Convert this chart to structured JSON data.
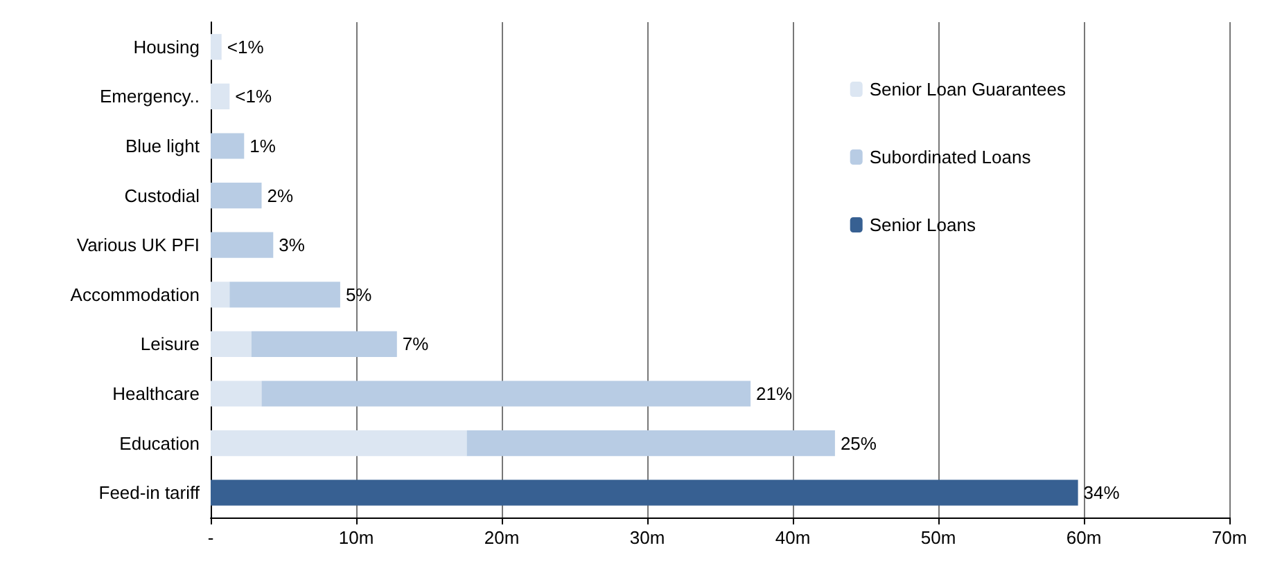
{
  "chart_data": {
    "type": "bar",
    "orientation": "horizontal",
    "stacked": true,
    "categories": [
      "Housing",
      "Emergency..",
      "Blue light",
      "Custodial",
      "Various UK PFI",
      "Accommodation",
      "Leisure",
      "Healthcare",
      "Education",
      "Feed-in tariff"
    ],
    "series": [
      {
        "name": "Senior Loan Guarantees",
        "color": "#dce6f2",
        "values": [
          0.75,
          1.3,
          null,
          null,
          null,
          1.3,
          2.8,
          3.5,
          17.6,
          null
        ]
      },
      {
        "name": "Subordinated Loans",
        "color": "#b8cce4",
        "values": [
          null,
          null,
          2.3,
          3.5,
          4.3,
          7.6,
          10.0,
          33.6,
          25.3,
          null
        ]
      },
      {
        "name": "Senior Loans",
        "color": "#376092",
        "values": [
          null,
          null,
          null,
          null,
          null,
          null,
          null,
          null,
          null,
          59.6
        ]
      }
    ],
    "annotations": [
      {
        "text": "<1%",
        "x": 0.75,
        "y": "Housing"
      },
      {
        "text": "<1%",
        "x": 1.3,
        "y": "Emergency.."
      },
      {
        "text": "1%",
        "x": 2.3,
        "y": "Blue light"
      },
      {
        "text": "2%",
        "x": 3.5,
        "y": "Custodial"
      },
      {
        "text": "3%",
        "x": 4.3,
        "y": "Various UK PFI"
      },
      {
        "text": "5%",
        "x": 8.9,
        "y": "Accommodation"
      },
      {
        "text": "7%",
        "x": 12.8,
        "y": "Leisure"
      },
      {
        "text": "21%",
        "x": 37.1,
        "y": "Healthcare"
      },
      {
        "text": "25%",
        "x": 42.9,
        "y": "Education"
      },
      {
        "text": "34%",
        "x": 59.6,
        "y": "Feed-in tariff"
      }
    ],
    "xlim": [
      0,
      70
    ],
    "xticks": [
      {
        "value": 0,
        "label": "-"
      },
      {
        "value": 10,
        "label": "10m"
      },
      {
        "value": 20,
        "label": "20m"
      },
      {
        "value": 30,
        "label": "30m"
      },
      {
        "value": 40,
        "label": "40m"
      },
      {
        "value": 50,
        "label": "50m"
      },
      {
        "value": 60,
        "label": "60m"
      },
      {
        "value": 70,
        "label": "70m"
      }
    ],
    "grid": "x",
    "legend": "top right"
  }
}
